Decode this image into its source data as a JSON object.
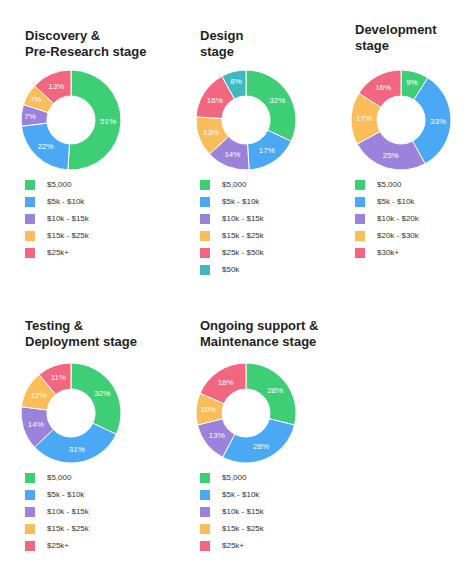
{
  "chart_data": [
    {
      "type": "pie",
      "title": "Discovery &\nPre-Research stage",
      "categories": [
        "$5,000",
        "$5k - $10k",
        "$10k - $15k",
        "$15k - $25k",
        "$25k+"
      ],
      "values": [
        51,
        22,
        7,
        7,
        13
      ],
      "value_labels": [
        "51%",
        "22%",
        "7%",
        "7%",
        "13%"
      ],
      "colors": [
        "#3ecf76",
        "#4aa8f5",
        "#9b82db",
        "#fbbd5a",
        "#f3667f"
      ],
      "data_labels": true,
      "legend": "below"
    },
    {
      "type": "pie",
      "title": "Design\nstage",
      "categories": [
        "$5,000",
        "$5k - $10k",
        "$10k - $15k",
        "$15k - $25k",
        "$25k - $50k",
        "$50k"
      ],
      "values": [
        32,
        17,
        14,
        13,
        16,
        8
      ],
      "value_labels": [
        "32%",
        "17%",
        "14%",
        "13%",
        "16%",
        "8%"
      ],
      "colors": [
        "#3ecf76",
        "#4aa8f5",
        "#9b82db",
        "#fbbd5a",
        "#f3667f",
        "#3fb8c0"
      ],
      "data_labels": true,
      "legend": "below"
    },
    {
      "type": "pie",
      "title": "Development\nstage",
      "categories": [
        "$5,000",
        "$5k - $10k",
        "$10k - $20k",
        "$20k - $30k",
        "$30k+"
      ],
      "values": [
        9,
        33,
        25,
        17,
        16
      ],
      "value_labels": [
        "9%",
        "33%",
        "25%",
        "17%",
        "16%"
      ],
      "colors": [
        "#3ecf76",
        "#4aa8f5",
        "#9b82db",
        "#fbbd5a",
        "#f3667f"
      ],
      "data_labels": true,
      "legend": "below"
    },
    {
      "type": "pie",
      "title": "Testing &\nDeployment stage",
      "categories": [
        "$5,000",
        "$5k - $10k",
        "$10k - $15k",
        "$15k - $25k",
        "$25k+"
      ],
      "values": [
        32,
        31,
        14,
        12,
        11
      ],
      "value_labels": [
        "32%",
        "31%",
        "14%",
        "12%",
        "11%"
      ],
      "colors": [
        "#3ecf76",
        "#4aa8f5",
        "#9b82db",
        "#fbbd5a",
        "#f3667f"
      ],
      "data_labels": true,
      "legend": "below"
    },
    {
      "type": "pie",
      "title": "Ongoing support &\nMaintenance stage",
      "categories": [
        "$5,000",
        "$5k - $10k",
        "$10k - $15k",
        "$15k - $25k",
        "$25k+"
      ],
      "values": [
        28,
        28,
        13,
        10,
        18
      ],
      "value_labels": [
        "28%",
        "28%",
        "13%",
        "10%",
        "18%"
      ],
      "colors": [
        "#3ecf76",
        "#4aa8f5",
        "#9b82db",
        "#fbbd5a",
        "#f3667f"
      ],
      "data_labels": true,
      "legend": "below"
    }
  ]
}
